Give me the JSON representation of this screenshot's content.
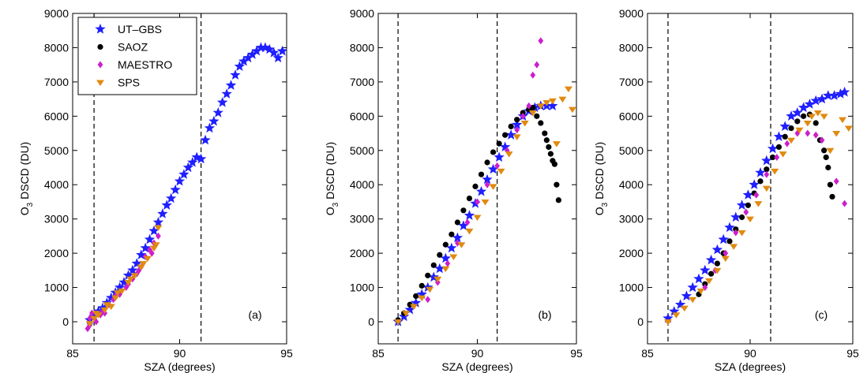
{
  "chart_data": [
    {
      "type": "scatter",
      "panel_label": "(a)",
      "xlabel": "SZA (degrees)",
      "ylabel_main": "O",
      "ylabel_sub": "3",
      "ylabel_rest": " DSCD (DU)",
      "xlim": [
        85,
        95
      ],
      "ylim": [
        -300,
        9000
      ],
      "xticks": [
        "85",
        "90",
        "95"
      ],
      "xtick_values": [
        85,
        90,
        95
      ],
      "yticks": [
        "0",
        "1000",
        "2000",
        "3000",
        "4000",
        "5000",
        "6000",
        "7000",
        "8000",
        "9000"
      ],
      "ytick_values": [
        0,
        1000,
        2000,
        3000,
        4000,
        5000,
        6000,
        7000,
        8000,
        9000
      ],
      "vlines": [
        86,
        91
      ],
      "legend": {
        "placement": "top-left",
        "entries": [
          {
            "label": "UT–GBS",
            "marker": "star",
            "color": "#1f1fff"
          },
          {
            "label": "SAOZ",
            "marker": "circle",
            "color": "#000000"
          },
          {
            "label": "MAESTRO",
            "marker": "diamond",
            "color": "#cc1fcc"
          },
          {
            "label": "SPS",
            "marker": "triangle-down",
            "color": "#e08a10"
          }
        ]
      },
      "series": [
        {
          "name": "UT–GBS",
          "marker": "star",
          "color": "#1f1fff",
          "x": [
            85.8,
            86.0,
            86.2,
            86.4,
            86.6,
            86.8,
            87.0,
            87.2,
            87.4,
            87.6,
            87.8,
            88.0,
            88.2,
            88.4,
            88.6,
            88.8,
            89.0,
            89.2,
            89.4,
            89.6,
            89.8,
            90.0,
            90.2,
            90.4,
            90.6,
            90.8,
            91.0,
            91.2,
            91.4,
            91.6,
            91.8,
            92.0,
            92.2,
            92.4,
            92.6,
            92.8,
            93.0,
            93.2,
            93.4,
            93.6,
            93.8,
            94.0,
            94.2,
            94.4,
            94.6,
            94.8
          ],
          "y": [
            50,
            150,
            300,
            400,
            550,
            700,
            850,
            1000,
            1150,
            1350,
            1500,
            1700,
            1950,
            2150,
            2400,
            2650,
            2900,
            3150,
            3400,
            3600,
            3850,
            4100,
            4300,
            4500,
            4650,
            4800,
            4750,
            5300,
            5650,
            5850,
            6100,
            6400,
            6650,
            6900,
            7200,
            7450,
            7600,
            7700,
            7800,
            7900,
            8000,
            8000,
            7950,
            7850,
            7700,
            7900
          ]
        },
        {
          "name": "MAESTRO",
          "marker": "diamond",
          "color": "#cc1fcc",
          "x": [
            85.7,
            85.8,
            85.9,
            86.1,
            86.3,
            86.5,
            86.7,
            86.9,
            87.2,
            87.5,
            87.8,
            88.0,
            88.2,
            88.4,
            88.6,
            88.8,
            89.0,
            85.8,
            86.4,
            87.0,
            87.6,
            88.1,
            88.7
          ],
          "y": [
            -200,
            100,
            250,
            0,
            200,
            250,
            500,
            650,
            800,
            1000,
            1250,
            1400,
            1600,
            1900,
            2100,
            2300,
            2500,
            -100,
            300,
            750,
            1100,
            1500,
            2000
          ]
        },
        {
          "name": "SPS",
          "marker": "triangle-down",
          "color": "#e08a10",
          "x": [
            85.8,
            86.0,
            86.2,
            86.5,
            86.8,
            87.0,
            87.3,
            87.6,
            87.9,
            88.2,
            88.5,
            88.8,
            89.0,
            86.1,
            86.6,
            87.1,
            87.7,
            88.3,
            88.9
          ],
          "y": [
            -50,
            100,
            200,
            350,
            450,
            700,
            900,
            1150,
            1350,
            1600,
            1850,
            2150,
            2750,
            250,
            500,
            850,
            1250,
            1700,
            2250
          ]
        }
      ]
    },
    {
      "type": "scatter",
      "panel_label": "(b)",
      "xlabel": "SZA (degrees)",
      "ylabel_main": "O",
      "ylabel_sub": "3",
      "ylabel_rest": " DSCD (DU)",
      "xlim": [
        85,
        95
      ],
      "ylim": [
        -300,
        9000
      ],
      "xticks": [
        "85",
        "90",
        "95"
      ],
      "xtick_values": [
        85,
        90,
        95
      ],
      "yticks": [
        "0",
        "1000",
        "2000",
        "3000",
        "4000",
        "5000",
        "6000",
        "7000",
        "8000",
        "9000"
      ],
      "ytick_values": [
        0,
        1000,
        2000,
        3000,
        4000,
        5000,
        6000,
        7000,
        8000,
        9000
      ],
      "vlines": [
        86,
        91
      ],
      "series": [
        {
          "name": "UT–GBS",
          "marker": "star",
          "color": "#1f1fff",
          "x": [
            86.0,
            86.3,
            86.6,
            86.9,
            87.2,
            87.5,
            87.8,
            88.1,
            88.4,
            88.7,
            89.0,
            89.3,
            89.6,
            89.9,
            90.2,
            90.5,
            90.8,
            91.1,
            91.4,
            91.7,
            92.0,
            92.3,
            92.6,
            92.9,
            93.2,
            93.5,
            93.8
          ],
          "y": [
            0,
            150,
            350,
            550,
            800,
            1000,
            1300,
            1550,
            1850,
            2150,
            2450,
            2800,
            3100,
            3450,
            3800,
            4150,
            4450,
            4800,
            5100,
            5450,
            5750,
            6000,
            6150,
            6250,
            6300,
            6300,
            6300
          ]
        },
        {
          "name": "SAOZ",
          "marker": "circle",
          "color": "#000000",
          "x": [
            86.0,
            86.3,
            86.6,
            86.9,
            87.2,
            87.5,
            87.8,
            88.1,
            88.4,
            88.7,
            89.0,
            89.3,
            89.6,
            89.9,
            90.2,
            90.5,
            90.8,
            91.1,
            91.4,
            91.7,
            92.0,
            92.3,
            92.6,
            92.8,
            93.0,
            93.2,
            93.4,
            93.5,
            93.6,
            93.7,
            93.8,
            93.9,
            94.0,
            94.1
          ],
          "y": [
            50,
            250,
            500,
            750,
            1050,
            1350,
            1650,
            1950,
            2250,
            2550,
            2900,
            3250,
            3600,
            3950,
            4300,
            4650,
            4950,
            5200,
            5450,
            5700,
            5900,
            6100,
            6200,
            6250,
            6000,
            5800,
            5500,
            5300,
            5100,
            4900,
            4700,
            4600,
            4000,
            3550
          ]
        },
        {
          "name": "MAESTRO",
          "marker": "diamond",
          "color": "#cc1fcc",
          "x": [
            87.5,
            88.0,
            88.5,
            89.0,
            89.5,
            90.0,
            90.5,
            91.0,
            91.5,
            92.0,
            92.3,
            92.6,
            92.8,
            93.0,
            93.2
          ],
          "y": [
            650,
            1150,
            1700,
            2300,
            2900,
            3500,
            4000,
            4550,
            5000,
            5600,
            6000,
            6300,
            7200,
            7500,
            8200
          ]
        },
        {
          "name": "SPS",
          "marker": "triangle-down",
          "color": "#e08a10",
          "x": [
            86.0,
            86.4,
            86.8,
            87.2,
            87.6,
            88.0,
            88.4,
            88.8,
            89.2,
            89.6,
            90.0,
            90.4,
            90.8,
            91.2,
            91.6,
            92.0,
            92.4,
            92.8,
            93.2,
            93.5,
            93.8,
            94.0,
            94.3,
            94.6,
            94.8
          ],
          "y": [
            0,
            250,
            450,
            700,
            950,
            1250,
            1550,
            1900,
            2250,
            2650,
            3050,
            3500,
            3950,
            4400,
            4900,
            5400,
            5800,
            6100,
            6300,
            6400,
            6450,
            5200,
            6500,
            6800,
            6200
          ]
        }
      ]
    },
    {
      "type": "scatter",
      "panel_label": "(c)",
      "xlabel": "SZA (degrees)",
      "ylabel_main": "O",
      "ylabel_sub": "3",
      "ylabel_rest": " DSCD (DU)",
      "xlim": [
        85,
        95
      ],
      "ylim": [
        -300,
        9000
      ],
      "xticks": [
        "85",
        "90",
        "95"
      ],
      "xtick_values": [
        85,
        90,
        95
      ],
      "yticks": [
        "0",
        "1000",
        "2000",
        "3000",
        "4000",
        "5000",
        "6000",
        "7000",
        "8000",
        "9000"
      ],
      "ytick_values": [
        0,
        1000,
        2000,
        3000,
        4000,
        5000,
        6000,
        7000,
        8000,
        9000
      ],
      "vlines": [
        86,
        91
      ],
      "series": [
        {
          "name": "UT–GBS",
          "marker": "star",
          "color": "#1f1fff",
          "x": [
            86.0,
            86.3,
            86.6,
            86.9,
            87.2,
            87.5,
            87.8,
            88.1,
            88.4,
            88.7,
            89.0,
            89.3,
            89.6,
            89.9,
            90.2,
            90.5,
            90.8,
            91.1,
            91.4,
            91.7,
            92.0,
            92.3,
            92.6,
            92.9,
            93.2,
            93.5,
            93.8,
            94.1,
            94.4,
            94.6
          ],
          "y": [
            100,
            300,
            500,
            750,
            1000,
            1250,
            1500,
            1800,
            2100,
            2400,
            2750,
            3050,
            3400,
            3700,
            4000,
            4350,
            4700,
            5050,
            5400,
            5700,
            6000,
            6100,
            6250,
            6350,
            6450,
            6500,
            6600,
            6600,
            6650,
            6700
          ]
        },
        {
          "name": "SAOZ",
          "marker": "circle",
          "color": "#000000",
          "x": [
            87.5,
            87.8,
            88.1,
            88.4,
            88.7,
            89.0,
            89.3,
            89.6,
            89.9,
            90.2,
            90.5,
            90.8,
            91.1,
            91.4,
            91.7,
            92.0,
            92.3,
            92.6,
            92.9,
            93.2,
            93.4,
            93.6,
            93.7,
            93.8,
            93.9,
            94.0
          ],
          "y": [
            800,
            1100,
            1400,
            1700,
            2000,
            2350,
            2700,
            3050,
            3400,
            3750,
            4100,
            4450,
            4800,
            5100,
            5400,
            5650,
            5850,
            6000,
            6050,
            5800,
            5300,
            5000,
            4800,
            4500,
            4000,
            3650
          ]
        },
        {
          "name": "MAESTRO",
          "marker": "diamond",
          "color": "#cc1fcc",
          "x": [
            87.8,
            88.3,
            88.8,
            89.3,
            89.8,
            90.3,
            90.8,
            91.3,
            91.8,
            92.3,
            92.8,
            93.2,
            93.5,
            94.2,
            94.6
          ],
          "y": [
            1000,
            1500,
            2000,
            2600,
            3200,
            3700,
            4300,
            4800,
            5200,
            5500,
            5500,
            5450,
            5300,
            4100,
            3450
          ]
        },
        {
          "name": "SPS",
          "marker": "triangle-down",
          "color": "#e08a10",
          "x": [
            86.0,
            86.4,
            86.8,
            87.2,
            87.6,
            88.0,
            88.4,
            88.8,
            89.2,
            89.6,
            90.0,
            90.4,
            90.8,
            91.2,
            91.6,
            92.0,
            92.4,
            92.8,
            93.0,
            93.3,
            93.6,
            93.9,
            94.2,
            94.5,
            94.8
          ],
          "y": [
            0,
            200,
            400,
            650,
            900,
            1200,
            1500,
            1850,
            2200,
            2600,
            3000,
            3450,
            3900,
            4400,
            4900,
            5300,
            5600,
            5800,
            6000,
            6100,
            6000,
            5000,
            5500,
            5900,
            5650
          ]
        }
      ]
    }
  ]
}
